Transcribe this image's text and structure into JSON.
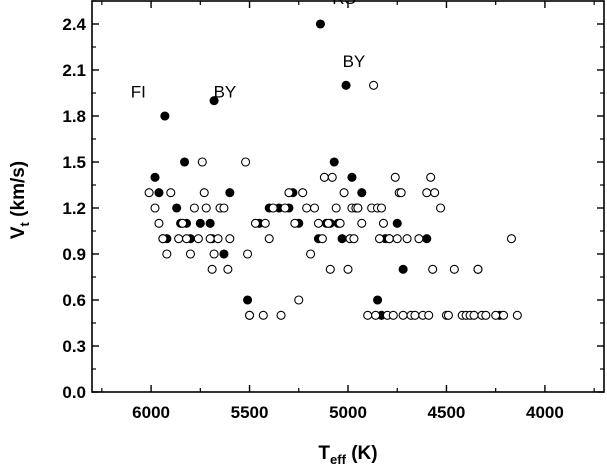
{
  "chart_data": {
    "type": "scatter",
    "x_axis": {
      "label_main": "T",
      "label_sub": "eff",
      "label_unit": " (K)",
      "reversed": true,
      "range": [
        6300,
        3700
      ],
      "ticks": [
        6000,
        5500,
        5000,
        4500,
        4000
      ],
      "tick_labels": [
        "6000",
        "5500",
        "5000",
        "4500",
        "4000"
      ]
    },
    "y_axis": {
      "label_main": "V",
      "label_sub": "t",
      "label_unit": " (km/s)",
      "range": [
        0.0,
        2.55
      ],
      "ticks": [
        0.0,
        0.3,
        0.6,
        0.9,
        1.2,
        1.5,
        1.8,
        2.1,
        2.4
      ],
      "tick_labels": [
        "0.0",
        "0.3",
        "0.6",
        "0.9",
        "1.2",
        "1.5",
        "1.8",
        "2.1",
        "2.4"
      ]
    },
    "grid": false,
    "series": [
      {
        "marker": "filled-circle",
        "color": "#000000",
        "points": [
          [
            5980,
            1.4
          ],
          [
            5960,
            1.3
          ],
          [
            5940,
            1.0
          ],
          [
            5920,
            1.0
          ],
          [
            5930,
            1.8
          ],
          [
            5870,
            1.2
          ],
          [
            5850,
            1.1
          ],
          [
            5830,
            1.5
          ],
          [
            5820,
            1.1
          ],
          [
            5800,
            1.0
          ],
          [
            5750,
            1.1
          ],
          [
            5700,
            1.1
          ],
          [
            5690,
            1.0
          ],
          [
            5680,
            1.9
          ],
          [
            5630,
            0.9
          ],
          [
            5600,
            1.3
          ],
          [
            5510,
            0.6
          ],
          [
            5500,
            0.5
          ],
          [
            5450,
            1.1
          ],
          [
            5400,
            1.2
          ],
          [
            5350,
            1.2
          ],
          [
            5300,
            1.2
          ],
          [
            5280,
            1.3
          ],
          [
            5250,
            1.1
          ],
          [
            5150,
            1.0
          ],
          [
            5140,
            2.4
          ],
          [
            5110,
            1.1
          ],
          [
            5090,
            1.1
          ],
          [
            5070,
            1.5
          ],
          [
            5050,
            1.1
          ],
          [
            5030,
            1.0
          ],
          [
            5010,
            2.0
          ],
          [
            4980,
            1.4
          ],
          [
            4950,
            1.2
          ],
          [
            4930,
            1.3
          ],
          [
            4850,
            0.6
          ],
          [
            4830,
            0.5
          ],
          [
            4810,
            1.0
          ],
          [
            4790,
            1.0
          ],
          [
            4750,
            1.1
          ],
          [
            4720,
            0.8
          ],
          [
            4600,
            1.0
          ],
          [
            4340,
            0.8
          ],
          [
            4230,
            0.5
          ]
        ]
      },
      {
        "marker": "open-circle",
        "color": "#000000",
        "points": [
          [
            6010,
            1.3
          ],
          [
            5980,
            1.2
          ],
          [
            5960,
            1.1
          ],
          [
            5940,
            1.0
          ],
          [
            5920,
            0.9
          ],
          [
            5900,
            1.3
          ],
          [
            5860,
            1.0
          ],
          [
            5840,
            1.1
          ],
          [
            5820,
            1.0
          ],
          [
            5800,
            0.9
          ],
          [
            5780,
            1.2
          ],
          [
            5760,
            1.0
          ],
          [
            5740,
            1.5
          ],
          [
            5730,
            1.3
          ],
          [
            5720,
            1.2
          ],
          [
            5700,
            1.0
          ],
          [
            5690,
            0.8
          ],
          [
            5680,
            0.9
          ],
          [
            5660,
            1.0
          ],
          [
            5650,
            1.2
          ],
          [
            5630,
            1.2
          ],
          [
            5610,
            0.8
          ],
          [
            5600,
            1.0
          ],
          [
            5520,
            1.5
          ],
          [
            5510,
            0.9
          ],
          [
            5500,
            0.5
          ],
          [
            5470,
            1.1
          ],
          [
            5430,
            0.5
          ],
          [
            5420,
            1.1
          ],
          [
            5400,
            1.0
          ],
          [
            5380,
            1.2
          ],
          [
            5340,
            0.5
          ],
          [
            5320,
            1.2
          ],
          [
            5300,
            1.3
          ],
          [
            5270,
            1.1
          ],
          [
            5250,
            0.6
          ],
          [
            5230,
            1.3
          ],
          [
            5210,
            1.2
          ],
          [
            5190,
            0.9
          ],
          [
            5170,
            1.2
          ],
          [
            5150,
            1.1
          ],
          [
            5130,
            1.0
          ],
          [
            5120,
            1.4
          ],
          [
            5100,
            1.1
          ],
          [
            5090,
            0.8
          ],
          [
            5080,
            1.4
          ],
          [
            5060,
            1.2
          ],
          [
            5040,
            1.1
          ],
          [
            5020,
            1.3
          ],
          [
            5000,
            0.8
          ],
          [
            4990,
            1.0
          ],
          [
            4980,
            1.2
          ],
          [
            4970,
            1.0
          ],
          [
            4960,
            1.2
          ],
          [
            4950,
            1.2
          ],
          [
            4930,
            1.1
          ],
          [
            4900,
            0.5
          ],
          [
            4880,
            1.2
          ],
          [
            4870,
            2.0
          ],
          [
            4860,
            0.5
          ],
          [
            4850,
            1.2
          ],
          [
            4840,
            1.0
          ],
          [
            4830,
            1.2
          ],
          [
            4820,
            1.1
          ],
          [
            4800,
            0.5
          ],
          [
            4790,
            1.0
          ],
          [
            4770,
            0.5
          ],
          [
            4760,
            1.4
          ],
          [
            4750,
            1.0
          ],
          [
            4740,
            1.3
          ],
          [
            4730,
            1.3
          ],
          [
            4720,
            0.5
          ],
          [
            4700,
            1.0
          ],
          [
            4680,
            0.5
          ],
          [
            4660,
            0.5
          ],
          [
            4640,
            1.0
          ],
          [
            4620,
            0.5
          ],
          [
            4600,
            1.3
          ],
          [
            4590,
            0.5
          ],
          [
            4580,
            1.4
          ],
          [
            4570,
            0.8
          ],
          [
            4560,
            1.3
          ],
          [
            4530,
            1.2
          ],
          [
            4500,
            0.5
          ],
          [
            4490,
            0.5
          ],
          [
            4460,
            0.8
          ],
          [
            4420,
            0.5
          ],
          [
            4400,
            0.5
          ],
          [
            4380,
            0.5
          ],
          [
            4360,
            0.5
          ],
          [
            4340,
            0.8
          ],
          [
            4320,
            0.5
          ],
          [
            4300,
            0.5
          ],
          [
            4250,
            0.5
          ],
          [
            4210,
            0.5
          ],
          [
            4170,
            1.0
          ],
          [
            4140,
            0.5
          ]
        ]
      }
    ],
    "annotations": [
      {
        "text": "FI",
        "x": 6065,
        "y": 1.92
      },
      {
        "text": "BY",
        "x": 5625,
        "y": 1.92
      },
      {
        "text": "RS",
        "x": 5020,
        "y": 2.53
      },
      {
        "text": "BY",
        "x": 4970,
        "y": 2.12
      }
    ]
  }
}
